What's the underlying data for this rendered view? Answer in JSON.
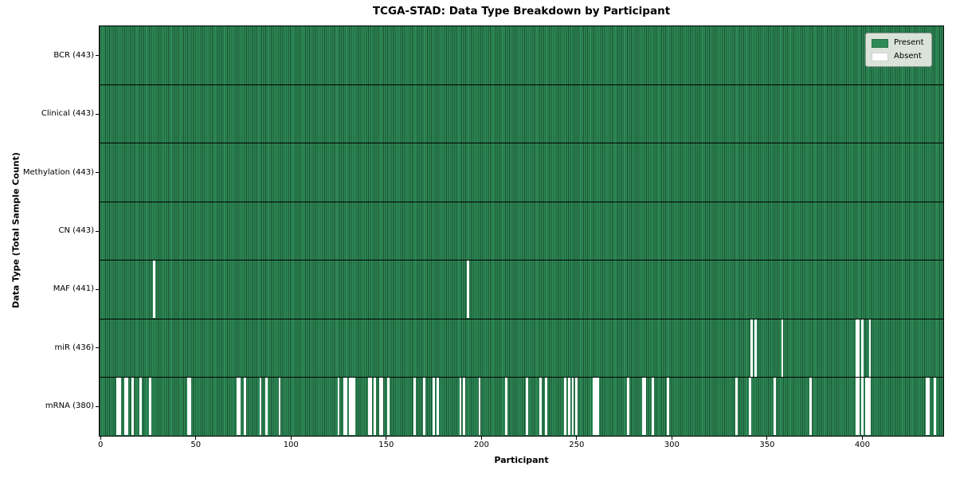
{
  "title": "TCGA-STAD: Data Type Breakdown by Participant",
  "chart_data": {
    "type": "heatmap",
    "title": "TCGA-STAD: Data Type Breakdown by Participant",
    "xlabel": "Participant",
    "ylabel": "Data Type (Total Sample Count)",
    "n_participants": 443,
    "xlim": [
      -0.5,
      442.5
    ],
    "x_ticks": [
      0,
      50,
      100,
      150,
      200,
      250,
      300,
      350,
      400
    ],
    "grid": false,
    "legend": {
      "position": "upper right",
      "entries": [
        {
          "label": "Present",
          "color": "#2e8b57"
        },
        {
          "label": "Absent",
          "color": "#ffffff"
        }
      ]
    },
    "colors": {
      "present": "#2e8b57",
      "absent": "#ffffff",
      "gridline": "rgba(0,0,0,0.42)",
      "divider": "#000000"
    },
    "rows": [
      {
        "label": "BCR (443)",
        "name": "BCR",
        "total": 443,
        "absent": []
      },
      {
        "label": "Clinical (443)",
        "name": "Clinical",
        "total": 443,
        "absent": []
      },
      {
        "label": "Methylation (443)",
        "name": "Methylation",
        "total": 443,
        "absent": []
      },
      {
        "label": "CN (443)",
        "name": "CN",
        "total": 443,
        "absent": []
      },
      {
        "label": "MAF (441)",
        "name": "MAF",
        "total": 441,
        "absent": [
          28,
          193
        ]
      },
      {
        "label": "miR (436)",
        "name": "miR",
        "total": 436,
        "absent": [
          342,
          344,
          358,
          397,
          398,
          400,
          404
        ]
      },
      {
        "label": "mRNA (380)",
        "name": "mRNA",
        "total": 380,
        "absent": [
          9,
          10,
          13,
          14,
          17,
          21,
          26,
          46,
          47,
          72,
          73,
          76,
          84,
          87,
          94,
          125,
          128,
          129,
          131,
          132,
          133,
          141,
          142,
          144,
          147,
          148,
          151,
          165,
          170,
          175,
          177,
          189,
          191,
          199,
          213,
          224,
          231,
          234,
          244,
          246,
          248,
          250,
          259,
          260,
          261,
          277,
          285,
          286,
          290,
          298,
          334,
          341,
          354,
          373,
          397,
          398,
          400,
          402,
          403,
          404,
          434,
          435,
          438
        ]
      }
    ]
  }
}
